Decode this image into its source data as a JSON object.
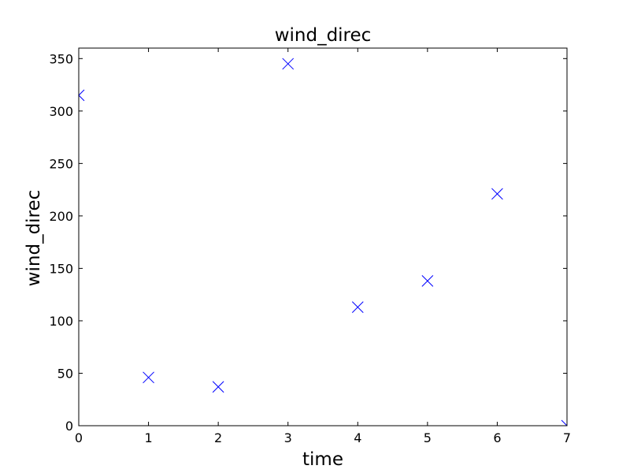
{
  "chart_data": {
    "type": "scatter",
    "title": "wind_direc",
    "xlabel": "time",
    "ylabel": "wind_direc",
    "xlim": [
      0,
      7
    ],
    "ylim": [
      0,
      360
    ],
    "xticks": [
      0,
      1,
      2,
      3,
      4,
      5,
      6,
      7
    ],
    "yticks": [
      0,
      50,
      100,
      150,
      200,
      250,
      300,
      350
    ],
    "grid": false,
    "marker": "x",
    "marker_color": "#0000ff",
    "series": [
      {
        "x": [
          0,
          1,
          2,
          3,
          4,
          5,
          6,
          7
        ],
        "y": [
          315,
          46,
          37,
          345,
          113,
          138,
          221,
          0
        ]
      }
    ]
  }
}
